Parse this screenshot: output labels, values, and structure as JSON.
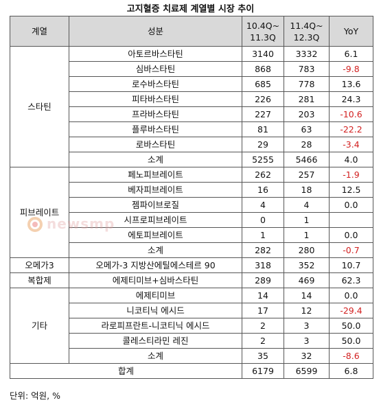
{
  "title": "고지혈증 치료제 계열별 시장 추이",
  "header": {
    "col1": "계열",
    "col2": "성분",
    "col3": "10.4Q~ 11.3Q",
    "col4": "11.4Q~ 12.3Q",
    "col5": "YoY"
  },
  "groups": [
    {
      "name": "스타틴",
      "rows": [
        {
          "item": "아토르바스타틴",
          "a": "3140",
          "b": "3332",
          "yoy": "6.1"
        },
        {
          "item": "심바스타틴",
          "a": "868",
          "b": "783",
          "yoy": "-9.8"
        },
        {
          "item": "로수바스타틴",
          "a": "685",
          "b": "778",
          "yoy": "13.6"
        },
        {
          "item": "피타바스타틴",
          "a": "226",
          "b": "281",
          "yoy": "24.3"
        },
        {
          "item": "프라바스타틴",
          "a": "227",
          "b": "203",
          "yoy": "-10.6"
        },
        {
          "item": "플루바스타틴",
          "a": "81",
          "b": "63",
          "yoy": "-22.2"
        },
        {
          "item": "로바스타틴",
          "a": "29",
          "b": "28",
          "yoy": "-3.4"
        },
        {
          "item": "소계",
          "a": "5255",
          "b": "5466",
          "yoy": "4.0"
        }
      ]
    },
    {
      "name": "피브레이트",
      "rows": [
        {
          "item": "페노피브레이트",
          "a": "262",
          "b": "257",
          "yoy": "-1.9"
        },
        {
          "item": "베자피브레이트",
          "a": "16",
          "b": "18",
          "yoy": "12.5"
        },
        {
          "item": "젬파이브로질",
          "a": "4",
          "b": "4",
          "yoy": "0.0"
        },
        {
          "item": "시프로피브레이트",
          "a": "0",
          "b": "1",
          "yoy": ""
        },
        {
          "item": "에토피브레이트",
          "a": "1",
          "b": "1",
          "yoy": "0.0"
        },
        {
          "item": "소계",
          "a": "282",
          "b": "280",
          "yoy": "-0.7"
        }
      ]
    },
    {
      "name": "오메가3",
      "rows": [
        {
          "item": "오메가-3 지방산에틸에스테르 90",
          "a": "318",
          "b": "352",
          "yoy": "10.7"
        }
      ]
    },
    {
      "name": "복합제",
      "rows": [
        {
          "item": "에제티미브+심바스타틴",
          "a": "289",
          "b": "469",
          "yoy": "62.3"
        }
      ]
    },
    {
      "name": "기타",
      "rows": [
        {
          "item": "에제티미브",
          "a": "14",
          "b": "14",
          "yoy": "0.0"
        },
        {
          "item": "니코티닉 에시드",
          "a": "17",
          "b": "12",
          "yoy": "-29.4"
        },
        {
          "item": "라로피프란트-니코티닉 에시드",
          "a": "2",
          "b": "3",
          "yoy": "50.0"
        },
        {
          "item": "콜레스티라민 레진",
          "a": "2",
          "b": "3",
          "yoy": "50.0"
        },
        {
          "item": "소계",
          "a": "35",
          "b": "32",
          "yoy": "-8.6"
        }
      ]
    }
  ],
  "total": {
    "label": "합계",
    "a": "6179",
    "b": "6599",
    "yoy": "6.8"
  },
  "footer": "단위: 억원, %",
  "watermark": "newsmp",
  "colors": {
    "negative": "#d22020",
    "header_bg": "#d9d9d9"
  }
}
